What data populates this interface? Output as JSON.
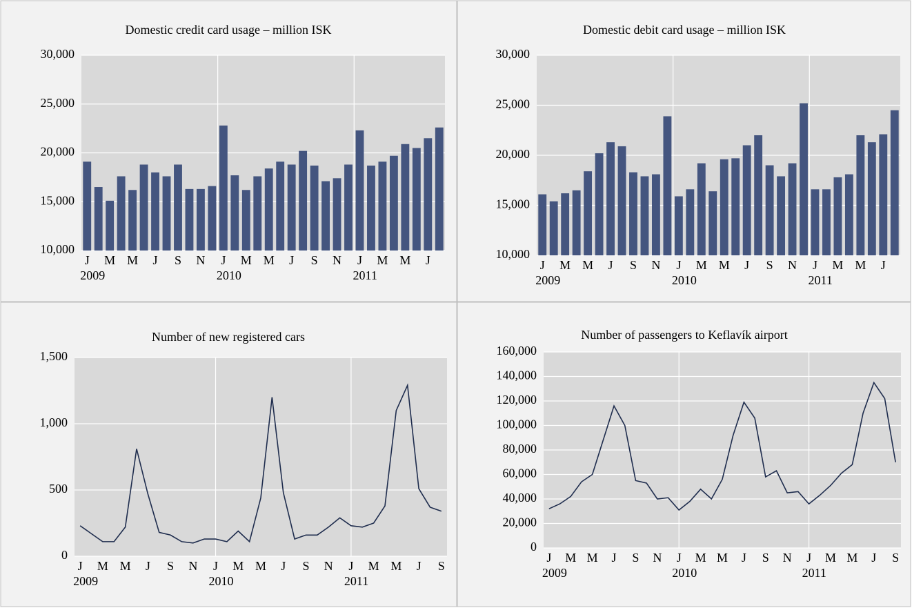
{
  "chart_data": [
    {
      "type": "bar",
      "title": "Domestic credit card usage – million ISK",
      "color": "#44557f",
      "categories": [
        "J",
        null,
        "M",
        null,
        "M",
        null,
        "J",
        null,
        "S",
        null,
        "N",
        null,
        "J",
        null,
        "M",
        null,
        "M",
        null,
        "J",
        null,
        "S",
        null,
        "N",
        null,
        "J",
        null,
        "M",
        null,
        "M",
        null,
        "J",
        null
      ],
      "years": [
        "2009",
        null,
        null,
        null,
        null,
        null,
        null,
        null,
        null,
        null,
        null,
        null,
        "2010",
        null,
        null,
        null,
        null,
        null,
        null,
        null,
        null,
        null,
        null,
        null,
        "2011",
        null,
        null,
        null,
        null,
        null,
        null,
        null
      ],
      "values": [
        19100,
        16500,
        15100,
        17600,
        16200,
        18800,
        18000,
        17600,
        18800,
        16300,
        16300,
        16600,
        22800,
        17700,
        16200,
        17600,
        18400,
        19100,
        18800,
        20200,
        18700,
        17100,
        17400,
        18800,
        22300,
        18700,
        19100,
        19700,
        20900,
        20500,
        21500,
        22600
      ],
      "ylim": [
        10000,
        30000
      ],
      "yticks": [
        {
          "value": 10000,
          "label": "10,000"
        },
        {
          "value": 15000,
          "label": "15,000"
        },
        {
          "value": 20000,
          "label": "20,000"
        },
        {
          "value": 25000,
          "label": "25,000"
        },
        {
          "value": 30000,
          "label": "30,000"
        }
      ],
      "grid": true
    },
    {
      "type": "bar",
      "title": "Domestic debit card usage – million ISK",
      "color": "#44557f",
      "categories": [
        "J",
        null,
        "M",
        null,
        "M",
        null,
        "J",
        null,
        "S",
        null,
        "N",
        null,
        "J",
        null,
        "M",
        null,
        "M",
        null,
        "J",
        null,
        "S",
        null,
        "N",
        null,
        "J",
        null,
        "M",
        null,
        "M",
        null,
        "J",
        null
      ],
      "years": [
        "2009",
        null,
        null,
        null,
        null,
        null,
        null,
        null,
        null,
        null,
        null,
        null,
        "2010",
        null,
        null,
        null,
        null,
        null,
        null,
        null,
        null,
        null,
        null,
        null,
        "2011",
        null,
        null,
        null,
        null,
        null,
        null,
        null
      ],
      "values": [
        16100,
        15400,
        16200,
        16500,
        18400,
        20200,
        21300,
        20900,
        18300,
        17900,
        18100,
        23900,
        15900,
        16600,
        19200,
        16400,
        19600,
        19700,
        21000,
        22000,
        19000,
        17900,
        19200,
        25200,
        16600,
        16600,
        17800,
        18100,
        22000,
        21300,
        22100,
        24500
      ],
      "ylim": [
        10000,
        30000
      ],
      "yticks": [
        {
          "value": 10000,
          "label": "10,000"
        },
        {
          "value": 15000,
          "label": "15,000"
        },
        {
          "value": 20000,
          "label": "20,000"
        },
        {
          "value": 25000,
          "label": "25,000"
        },
        {
          "value": 30000,
          "label": "30,000"
        }
      ],
      "grid": true
    },
    {
      "type": "line",
      "title": "Number of new registered cars",
      "color": "#1f2d4e",
      "categories": [
        "J",
        null,
        "M",
        null,
        "M",
        null,
        "J",
        null,
        "S",
        null,
        "N",
        null,
        "J",
        null,
        "M",
        null,
        "M",
        null,
        "J",
        null,
        "S",
        null,
        "N",
        null,
        "J",
        null,
        "M",
        null,
        "M",
        null,
        "J",
        null,
        "S"
      ],
      "years": [
        "2009",
        null,
        null,
        null,
        null,
        null,
        null,
        null,
        null,
        null,
        null,
        null,
        "2010",
        null,
        null,
        null,
        null,
        null,
        null,
        null,
        null,
        null,
        null,
        null,
        "2011",
        null,
        null,
        null,
        null,
        null,
        null,
        null,
        null
      ],
      "values": [
        230,
        170,
        110,
        110,
        220,
        810,
        470,
        180,
        160,
        110,
        100,
        130,
        130,
        110,
        190,
        110,
        440,
        1200,
        480,
        130,
        160,
        160,
        220,
        290,
        230,
        220,
        250,
        380,
        1100,
        1290,
        510,
        370,
        340
      ],
      "ylim": [
        0,
        1500
      ],
      "yticks": [
        0,
        500,
        {
          "value": 1000,
          "label": "1,000"
        },
        {
          "value": 1500,
          "label": "1,500"
        }
      ],
      "grid": true
    },
    {
      "type": "line",
      "title": "Number of passengers to Keflavík airport",
      "color": "#1f2d4e",
      "categories": [
        "J",
        null,
        "M",
        null,
        "M",
        null,
        "J",
        null,
        "S",
        null,
        "N",
        null,
        "J",
        null,
        "M",
        null,
        "M",
        null,
        "J",
        null,
        "S",
        null,
        "N",
        null,
        "J",
        null,
        "M",
        null,
        "M",
        null,
        "J",
        null,
        "S"
      ],
      "years": [
        "2009",
        null,
        null,
        null,
        null,
        null,
        null,
        null,
        null,
        null,
        null,
        null,
        "2010",
        null,
        null,
        null,
        null,
        null,
        null,
        null,
        null,
        null,
        null,
        null,
        "2011",
        null,
        null,
        null,
        null,
        null,
        null,
        null,
        null
      ],
      "values": [
        32000,
        36000,
        42000,
        54000,
        60000,
        88000,
        116000,
        100000,
        55000,
        53000,
        40000,
        41000,
        31000,
        38000,
        48000,
        40000,
        56000,
        92000,
        119000,
        106000,
        58000,
        63000,
        45000,
        46000,
        36000,
        43000,
        51000,
        61000,
        68000,
        110000,
        135000,
        122000,
        70000
      ],
      "ylim": [
        0,
        160000
      ],
      "yticks": [
        0,
        {
          "value": 20000,
          "label": "20,000"
        },
        {
          "value": 40000,
          "label": "40,000"
        },
        {
          "value": 60000,
          "label": "60,000"
        },
        {
          "value": 80000,
          "label": "80,000"
        },
        {
          "value": 100000,
          "label": "100,000"
        },
        {
          "value": 120000,
          "label": "120,000"
        },
        {
          "value": 140000,
          "label": "140,000"
        },
        {
          "value": 160000,
          "label": "160,000"
        }
      ],
      "grid": true
    }
  ]
}
